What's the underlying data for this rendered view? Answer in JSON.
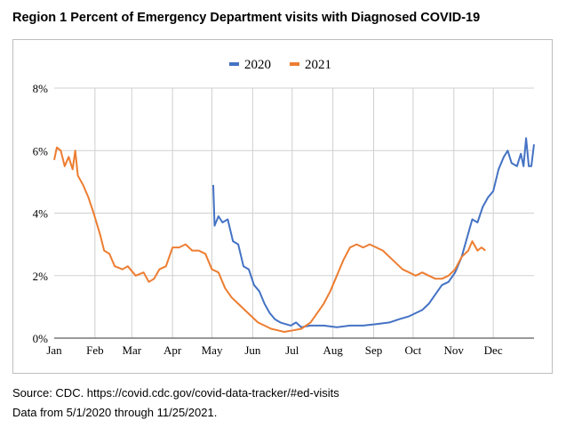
{
  "title": "Region 1 Percent of Emergency Department visits with Diagnosed COVID-19",
  "source_line1": "Source: CDC. https://covid.cdc.gov/covid-data-tracker/#ed-visits",
  "source_line2": "Data from 5/1/2020 through 11/25/2021.",
  "chart_data": {
    "type": "line",
    "title": "Region 1 Percent of Emergency Department visits with Diagnosed COVID-19",
    "xlabel": "",
    "ylabel": "",
    "x_unit": "day of year",
    "xlim": [
      0,
      365
    ],
    "ylim": [
      0,
      8
    ],
    "grid": true,
    "legend_placement": "top-center",
    "x_ticks": [
      {
        "label": "Jan",
        "day": 0
      },
      {
        "label": "Feb",
        "day": 31
      },
      {
        "label": "Mar",
        "day": 59
      },
      {
        "label": "Apr",
        "day": 90
      },
      {
        "label": "May",
        "day": 120
      },
      {
        "label": "Jun",
        "day": 151
      },
      {
        "label": "Jul",
        "day": 181
      },
      {
        "label": "Aug",
        "day": 212
      },
      {
        "label": "Sep",
        "day": 243
      },
      {
        "label": "Oct",
        "day": 273
      },
      {
        "label": "Nov",
        "day": 304
      },
      {
        "label": "Dec",
        "day": 334
      }
    ],
    "y_ticks": [
      {
        "label": "0%",
        "value": 0
      },
      {
        "label": "2%",
        "value": 2
      },
      {
        "label": "4%",
        "value": 4
      },
      {
        "label": "6%",
        "value": 6
      },
      {
        "label": "8%",
        "value": 8
      }
    ],
    "series": [
      {
        "name": "2020",
        "color": "#4472c4",
        "x": [
          121,
          122,
          125,
          128,
          132,
          136,
          140,
          144,
          148,
          152,
          156,
          160,
          164,
          168,
          172,
          176,
          180,
          184,
          188,
          195,
          205,
          215,
          225,
          235,
          245,
          255,
          262,
          270,
          275,
          280,
          285,
          290,
          295,
          300,
          305,
          310,
          314,
          318,
          322,
          326,
          330,
          334,
          338,
          342,
          345,
          348,
          352,
          355,
          357,
          359,
          361,
          363,
          365
        ],
        "y": [
          4.9,
          3.6,
          3.9,
          3.7,
          3.8,
          3.1,
          3.0,
          2.3,
          2.2,
          1.7,
          1.5,
          1.1,
          0.8,
          0.6,
          0.5,
          0.45,
          0.4,
          0.5,
          0.35,
          0.4,
          0.4,
          0.35,
          0.4,
          0.4,
          0.45,
          0.5,
          0.6,
          0.7,
          0.8,
          0.9,
          1.1,
          1.4,
          1.7,
          1.8,
          2.1,
          2.6,
          3.2,
          3.8,
          3.7,
          4.2,
          4.5,
          4.7,
          5.4,
          5.8,
          6.0,
          5.6,
          5.5,
          5.9,
          5.5,
          6.4,
          5.5,
          5.5,
          6.2
        ]
      },
      {
        "name": "2021",
        "color": "#ed7d31",
        "x": [
          0,
          2,
          5,
          8,
          11,
          14,
          16,
          18,
          22,
          26,
          30,
          35,
          38,
          42,
          46,
          52,
          56,
          62,
          68,
          72,
          76,
          80,
          85,
          90,
          95,
          100,
          105,
          110,
          115,
          120,
          125,
          130,
          135,
          140,
          145,
          150,
          155,
          160,
          165,
          170,
          175,
          182,
          188,
          195,
          200,
          205,
          210,
          215,
          220,
          225,
          230,
          235,
          240,
          245,
          250,
          255,
          260,
          265,
          270,
          275,
          280,
          285,
          290,
          295,
          300,
          305,
          310,
          315,
          318,
          322,
          325,
          328
        ],
        "y": [
          5.7,
          6.1,
          6.0,
          5.5,
          5.8,
          5.4,
          6.0,
          5.2,
          4.9,
          4.5,
          4.0,
          3.3,
          2.8,
          2.7,
          2.3,
          2.2,
          2.3,
          2.0,
          2.1,
          1.8,
          1.9,
          2.2,
          2.3,
          2.9,
          2.9,
          3.0,
          2.8,
          2.8,
          2.7,
          2.2,
          2.1,
          1.6,
          1.3,
          1.1,
          0.9,
          0.7,
          0.5,
          0.4,
          0.3,
          0.25,
          0.2,
          0.25,
          0.3,
          0.5,
          0.8,
          1.1,
          1.5,
          2.0,
          2.5,
          2.9,
          3.0,
          2.9,
          3.0,
          2.9,
          2.8,
          2.6,
          2.4,
          2.2,
          2.1,
          2.0,
          2.1,
          2.0,
          1.9,
          1.9,
          2.0,
          2.2,
          2.6,
          2.8,
          3.1,
          2.8,
          2.9,
          2.8
        ]
      }
    ]
  }
}
